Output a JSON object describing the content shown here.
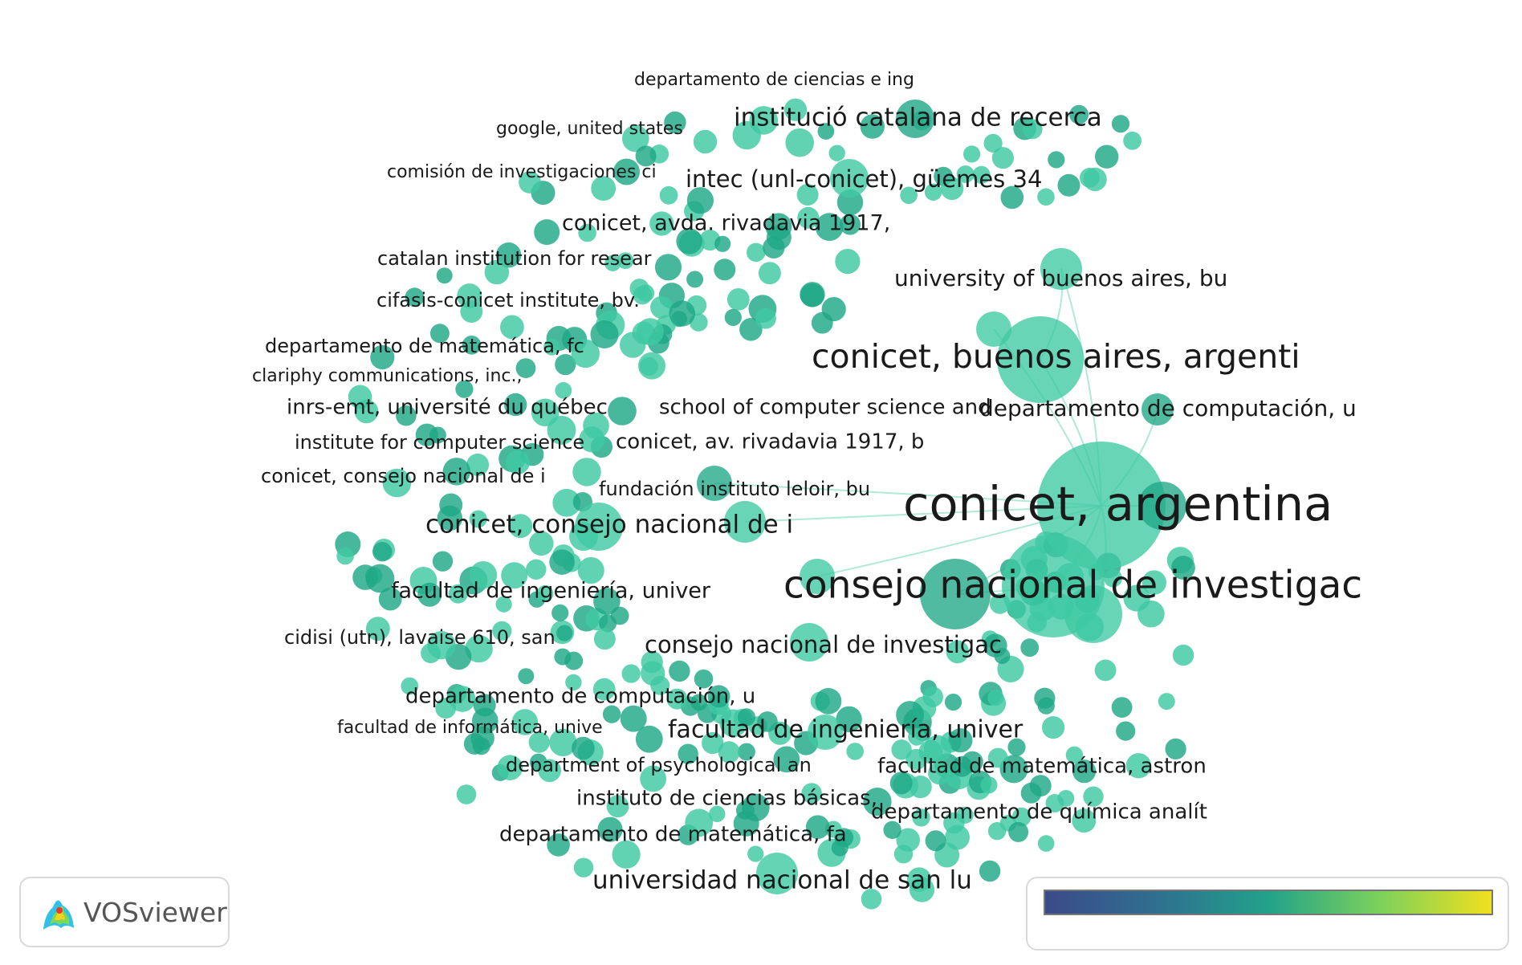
{
  "app": {
    "name": "VOSviewer"
  },
  "colors": {
    "node_fill": "#3ec9a2",
    "node_fill_dark": "#1fa886",
    "edge": "#8fe0c8",
    "legend_gradient": [
      "#3b4a8a",
      "#2f6f8f",
      "#22a28a",
      "#7cd15c",
      "#f0e01e"
    ]
  },
  "labels": [
    "departamento de ciencias e ing",
    "google, united states",
    "institució catalana de recerca",
    "comisión de investigaciones ci",
    "intec (unl-conicet), güemes 34",
    "conicet, avda. rivadavia 1917,",
    "catalan institution for resear",
    "university of buenos aires, bu",
    "cifasis-conicet institute, bv.",
    "departamento de matemática, fc",
    "conicet, buenos aires, argenti",
    "clariphy communications, inc.,",
    "inrs-emt, université du québec",
    "school of computer science and",
    "departamento de computación, u",
    "institute for computer science",
    "conicet, av. rivadavia 1917, b",
    "conicet, consejo nacional de i",
    "fundación instituto leloir, bu",
    "conicet, argentina",
    "conicet, consejo nacional de i",
    "consejo nacional de investigac",
    "facultad de ingeniería, univer",
    "cidisi (utn), lavaise 610, san",
    "consejo nacional de investigac",
    "departamento de computación, u",
    "facultad de informática, unive",
    "facultad de ingeniería, univer",
    "department of psychological an",
    "facultad de matemática, astron",
    "instituto de ciencias básicas,",
    "departamento de química analít",
    "departamento de matemática, fa",
    "universidad nacional de san lu"
  ]
}
